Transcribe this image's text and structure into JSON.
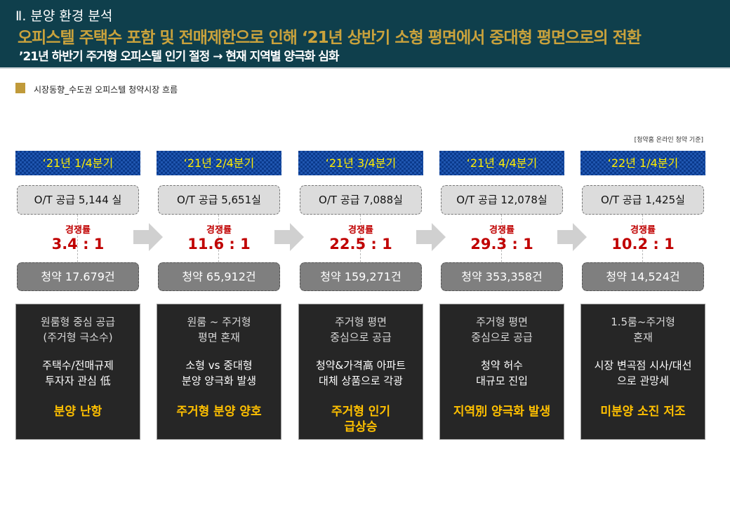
{
  "header": {
    "section": "Ⅱ. 분양 환경 분석",
    "main": "오피스텔 주택수 포함 및 전매제한으로 인해 ‘21년 상반기 소형 평면에서 중대형 평면으로의 전환",
    "sub": "’21년 하반기 주거형 오피스텔 인기 절정 → 현재 지역별 양극화 심화"
  },
  "section_title": "시장동향_수도권 오피스텔 청약시장 흐름",
  "note": "[청약홈 온라인 청약 기준]",
  "ratio_label": "경쟁률",
  "colors": {
    "header_bg": "#0f3f4c",
    "gold": "#c9a23c",
    "ratio": "#c00000",
    "highlight": "#ffc000",
    "quarter_text": "#ffee00"
  },
  "columns": [
    {
      "quarter": "‘21년 1/4분기",
      "supply": "O/T 공급 5,144 실",
      "ratio": "3.4 : 1",
      "subs": "청약 17.679건",
      "desc1": [
        "원룸형 중심 공급",
        "(주거형 극소수)"
      ],
      "desc2": [
        "주택수/전매규제",
        "투자자 관심 低"
      ],
      "highlight": [
        "분양 난항"
      ]
    },
    {
      "quarter": "‘21년 2/4분기",
      "supply": "O/T 공급 5,651실",
      "ratio": "11.6 : 1",
      "subs": "청약 65,912건",
      "desc1": [
        "원룸 ~ 주거형",
        "평면 혼재"
      ],
      "desc2": [
        "소형 vs 중대형",
        "분양 양극화 발생"
      ],
      "highlight": [
        "주거형 분양 양호"
      ]
    },
    {
      "quarter": "‘21년 3/4분기",
      "supply": "O/T 공급 7,088실",
      "ratio": "22.5 : 1",
      "subs": "청약 159,271건",
      "desc1": [
        "주거형 평면",
        "중심으로 공급"
      ],
      "desc2": [
        "청약&가격高 아파트",
        "대체 상품으로 각광"
      ],
      "highlight": [
        "주거형 인기",
        "급상승"
      ]
    },
    {
      "quarter": "‘21년 4/4분기",
      "supply": "O/T 공급 12,078실",
      "ratio": "29.3 : 1",
      "subs": "청약 353,358건",
      "desc1": [
        "주거형 평면",
        "중심으로 공급"
      ],
      "desc2": [
        "청약 허수",
        "대규모 진입"
      ],
      "highlight": [
        "지역別 양극화 발생"
      ]
    },
    {
      "quarter": "‘22년 1/4분기",
      "supply": "O/T 공급 1,425실",
      "ratio": "10.2 : 1",
      "subs": "청약 14,524건",
      "desc1": [
        "1.5룸~주거형",
        "혼재"
      ],
      "desc2": [
        "시장 변곡점 시사/대선",
        "으로 관망세"
      ],
      "highlight": [
        "미분양 소진 저조"
      ]
    }
  ]
}
